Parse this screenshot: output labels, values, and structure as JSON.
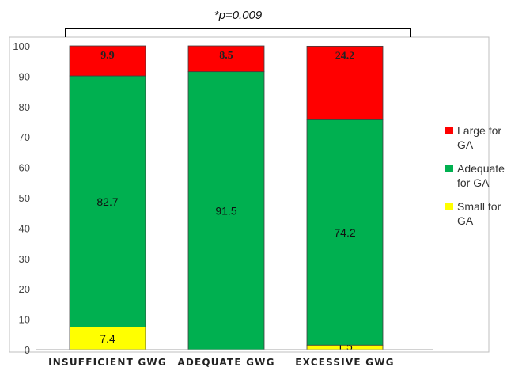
{
  "chart_data": {
    "type": "bar",
    "stacked": true,
    "categories": [
      "INSUFFICIENT GWG",
      "ADEQUATE GWG",
      "EXCESSIVE GWG"
    ],
    "series": [
      {
        "name": "Small for GA",
        "color": "#ffff00",
        "values": [
          7.4,
          0,
          1.5
        ],
        "labels": [
          "7.4",
          "0",
          "1.5"
        ]
      },
      {
        "name": "Adequate for GA",
        "color": "#00b050",
        "values": [
          82.7,
          91.5,
          74.2
        ],
        "labels": [
          "82.7",
          "91.5",
          "74.2"
        ]
      },
      {
        "name": "Large for GA",
        "color": "#ff0000",
        "values": [
          9.9,
          8.5,
          24.2
        ],
        "labels": [
          "9.9",
          "8.5",
          "24.2"
        ]
      }
    ],
    "legend_order": [
      "Large for GA",
      "Adequate for GA",
      "Small for GA"
    ],
    "legend_placement": "right",
    "ylim": [
      0,
      100
    ],
    "yticks": [
      0,
      10,
      20,
      30,
      40,
      50,
      60,
      70,
      80,
      90,
      100
    ],
    "grid": false,
    "annotation": "*p=0.009"
  }
}
